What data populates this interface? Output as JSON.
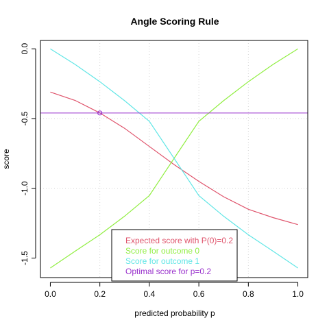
{
  "chart_data": {
    "type": "line",
    "title": "Angle Scoring Rule",
    "xlabel": "predicted probability p",
    "ylabel": "score",
    "xlim": [
      -0.04,
      1.04
    ],
    "ylim": [
      -1.64,
      0.06
    ],
    "x_ticks": [
      0,
      0.2,
      0.4,
      0.6,
      0.8,
      1
    ],
    "x_tick_labels": [
      "0.0",
      "0.2",
      "0.4",
      "0.6",
      "0.8",
      "1.0"
    ],
    "y_ticks": [
      0,
      -0.5,
      -1,
      -1.5
    ],
    "y_tick_labels": [
      "0.0",
      "-0.5",
      "-1.0",
      "-1.5"
    ],
    "grid": true,
    "grid_x": [
      0.2,
      0.4,
      0.6,
      0.8
    ],
    "grid_y": [
      -0.5,
      -1
    ],
    "series": [
      {
        "name": "Expected score with P(0)=0.2",
        "color": "#DF536B",
        "x": [
          0,
          0.1,
          0.2,
          0.3,
          0.4,
          0.5,
          0.6,
          0.7,
          0.8,
          0.9,
          1
        ],
        "y": [
          -0.31,
          -0.37,
          -0.46,
          -0.57,
          -0.7,
          -0.83,
          -0.95,
          -1.06,
          -1.15,
          -1.21,
          -1.26
        ]
      },
      {
        "name": "Score for outcome 0",
        "color": "#90EE40",
        "x": [
          0,
          0.1,
          0.2,
          0.3,
          0.4,
          0.5,
          0.6,
          0.7,
          0.8,
          0.9,
          1
        ],
        "y": [
          -1.571,
          -1.451,
          -1.333,
          -1.2,
          -1.052,
          -0.785,
          -0.52,
          -0.372,
          -0.236,
          -0.112,
          0
        ]
      },
      {
        "name": "Score for outcome 1",
        "color": "#61E6E6",
        "x": [
          0,
          0.1,
          0.2,
          0.3,
          0.4,
          0.5,
          0.6,
          0.7,
          0.8,
          0.9,
          1
        ],
        "y": [
          0,
          -0.112,
          -0.236,
          -0.372,
          -0.52,
          -0.785,
          -1.052,
          -1.2,
          -1.333,
          -1.451,
          -1.571
        ]
      },
      {
        "name": "Optimal score for p=0.2",
        "color": "#9932CC",
        "type": "hline",
        "y": -0.46
      }
    ],
    "marker": {
      "x": 0.2,
      "y": -0.46,
      "color": "#9932CC"
    },
    "legend_position": "bottom-center"
  }
}
